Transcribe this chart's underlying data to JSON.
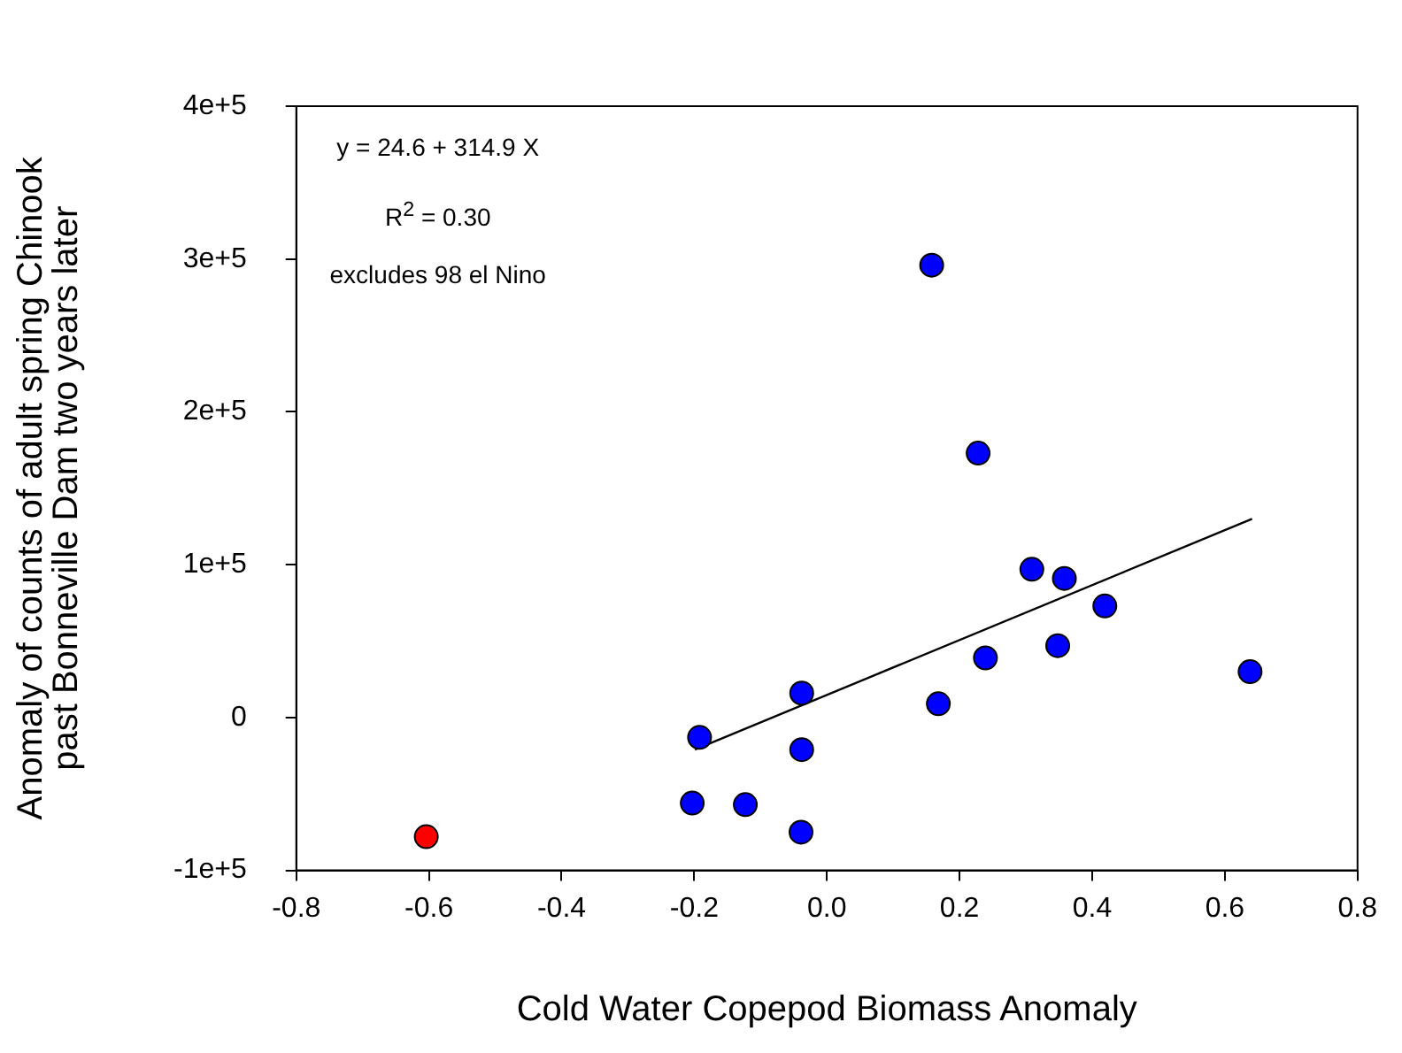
{
  "chart_data": {
    "type": "scatter",
    "xlabel": "Cold Water Copepod Biomass Anomaly",
    "ylabel": "Anomaly of counts of adult spring Chinook\npast Bonneville Dam two years later",
    "xlim": [
      -0.8,
      0.8
    ],
    "xticks": [
      {
        "value": -0.8,
        "label": "-0.8"
      },
      {
        "value": -0.6,
        "label": "-0.6"
      },
      {
        "value": -0.4,
        "label": "-0.4"
      },
      {
        "value": -0.2,
        "label": "-0.2"
      },
      {
        "value": 0,
        "label": "0.0"
      },
      {
        "value": 0.2,
        "label": "0.2"
      },
      {
        "value": 0.4,
        "label": "0.4"
      },
      {
        "value": 0.6,
        "label": "0.6"
      },
      {
        "value": 0.8,
        "label": "0.8"
      }
    ],
    "ylim": [
      -100000,
      400000
    ],
    "yticks": [
      {
        "value": -100000,
        "label": "-1e+5"
      },
      0,
      {
        "value": 100000,
        "label": "1e+5"
      },
      {
        "value": 200000,
        "label": "2e+5"
      },
      {
        "value": 300000,
        "label": "3e+5"
      },
      {
        "value": 400000,
        "label": "4e+5"
      }
    ],
    "grid": false,
    "legend": false,
    "marker": "circle",
    "annotations": [
      "y = 24.6 + 314.9 X",
      "R$^{2}$ = 0.30",
      "excludes 98 el Nino"
    ],
    "series": [
      {
        "type": "scatter",
        "x": [
          -0.604,
          -0.192,
          -0.203,
          -0.123,
          -0.038,
          -0.038,
          -0.039,
          0.158,
          0.228,
          0.168,
          0.239,
          0.309,
          0.358,
          0.348,
          0.419,
          0.638
        ],
        "values": [
          -78000,
          -13000,
          -56000,
          -57000,
          16000,
          -21000,
          -75000,
          296000,
          173000,
          9000,
          39000,
          97000,
          91000,
          47000,
          73000,
          30000
        ],
        "colors": [
          "#ff0000",
          "#0000ff",
          "#0000ff",
          "#0000ff",
          "#0000ff",
          "#0000ff",
          "#0000ff",
          "#0000ff",
          "#0000ff",
          "#0000ff",
          "#0000ff",
          "#0000ff",
          "#0000ff",
          "#0000ff",
          "#0000ff",
          "#0000ff"
        ]
      },
      {
        "type": "line",
        "color": "#000000",
        "marker": "none",
        "x": [
          -0.199,
          0.641
        ],
        "values": [
          -21000,
          130000
        ]
      }
    ]
  }
}
